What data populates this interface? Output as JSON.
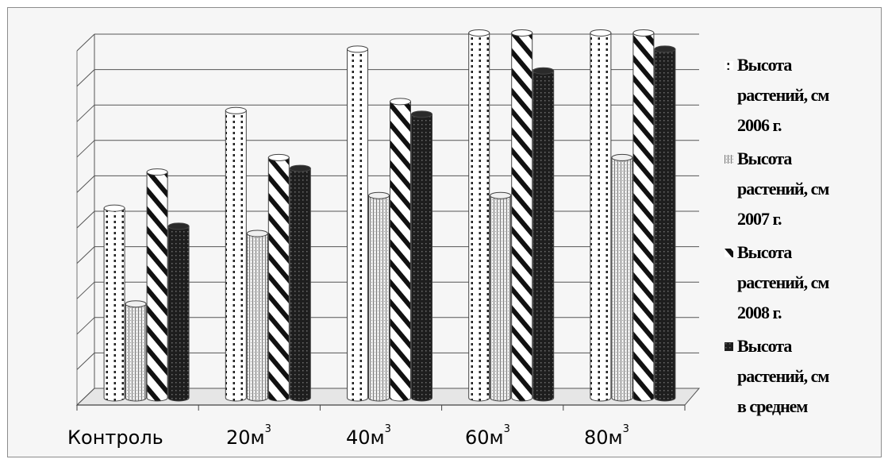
{
  "chart_data": {
    "type": "bar",
    "style": "3d-clustered-column, black-and-white pattern fills",
    "categories": [
      "Контроль",
      "20м3",
      "40м3",
      "60м3",
      "80м3"
    ],
    "category_labels": [
      {
        "base": "Контроль",
        "sup": ""
      },
      {
        "base": "20м",
        "sup": "3"
      },
      {
        "base": "40м",
        "sup": "3"
      },
      {
        "base": "60м",
        "sup": "3"
      },
      {
        "base": "80м",
        "sup": "3"
      }
    ],
    "series": [
      {
        "name": "Высота растений, см 2006 г.",
        "lines": [
          "Высота",
          "растений, см",
          "2006 г."
        ],
        "pattern": "dots",
        "values": [
          52.5,
          79.5,
          96.5,
          101,
          101
        ]
      },
      {
        "name": "Высота растений, см 2007 г.",
        "lines": [
          "Высота",
          "растений, см",
          "2007 г."
        ],
        "pattern": "vertical",
        "values": [
          26,
          45.5,
          56,
          56,
          66.5
        ]
      },
      {
        "name": "Высота растений, см 2008 г.",
        "lines": [
          "Высота",
          "растений, см",
          "2008 г."
        ],
        "pattern": "diagonal",
        "values": [
          62.5,
          66.5,
          82,
          101,
          101
        ]
      },
      {
        "name": "Высота растений, см в среднем",
        "lines": [
          "Высота",
          "растений, см",
          "в среднем"
        ],
        "pattern": "dark",
        "values": [
          47.5,
          63.5,
          78.5,
          90.5,
          96.5
        ]
      }
    ],
    "ylim": [
      0,
      100
    ],
    "gridlines": 10,
    "y_tick_labels_visible": false,
    "title": "",
    "xlabel": "",
    "ylabel": "",
    "legend_position": "right",
    "grid": true
  }
}
